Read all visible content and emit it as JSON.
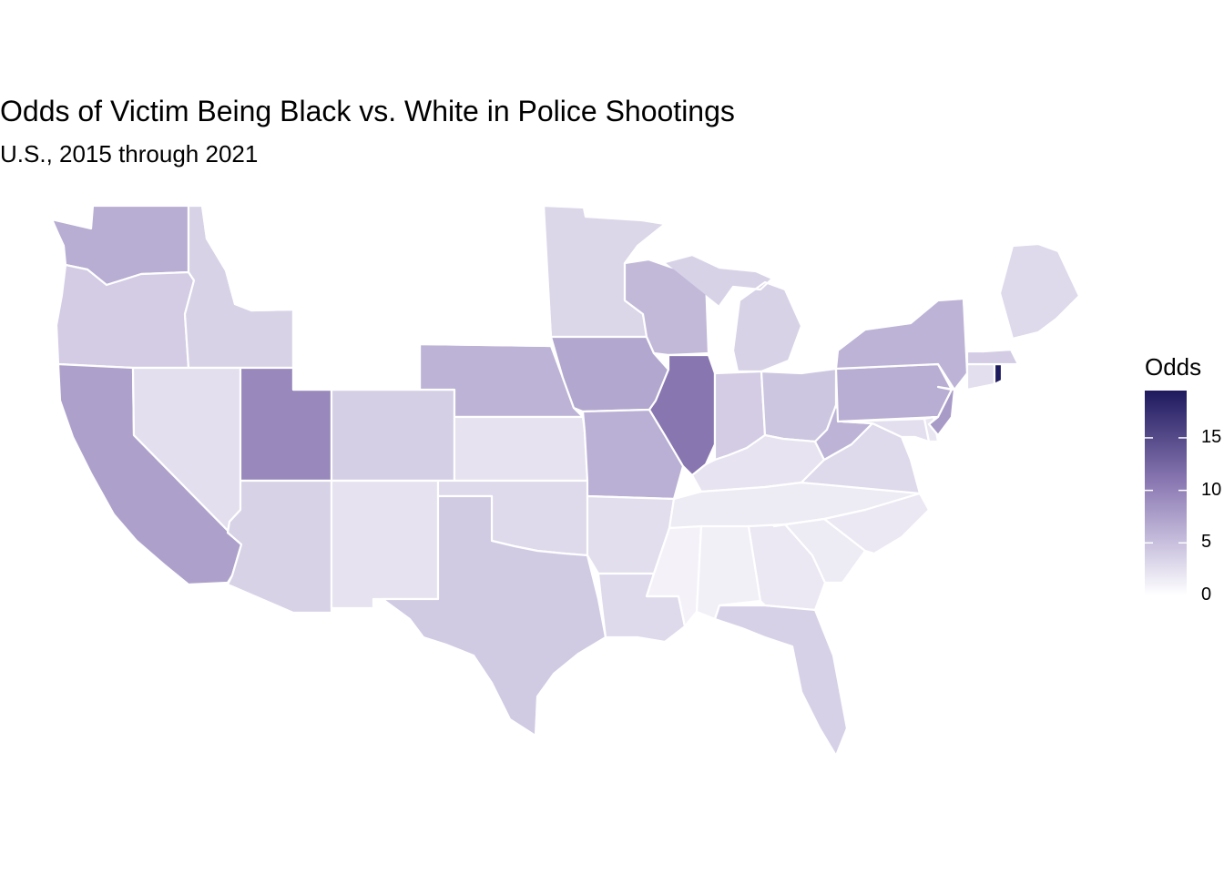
{
  "title": "Odds of Victim Being Black vs. White in Police Shootings",
  "subtitle": "U.S., 2015 through 2021",
  "legend": {
    "title": "Odds",
    "ticks": [
      "0",
      "5",
      "10",
      "15"
    ],
    "tick_values": [
      0,
      5,
      10,
      15
    ],
    "max": 19.5,
    "color_low": "#ffffff",
    "color_high": "#1e1a5e"
  },
  "map_data": {
    "type": "choropleth",
    "region": "contiguous United States",
    "states": {
      "WA": 6.5,
      "OR": 4.0,
      "CA": 7.5,
      "ID": 3.5,
      "NV": 2.5,
      "UT": 9.5,
      "AZ": 3.5,
      "MT": 0,
      "WY": 0,
      "CO": 3.8,
      "NM": 2.3,
      "ND": 0,
      "SD": 0,
      "NE": 6.0,
      "KS": 2.3,
      "OK": 3.0,
      "TX": 4.2,
      "MN": 3.2,
      "IA": 7.0,
      "MO": 6.3,
      "AR": 2.6,
      "LA": 3.0,
      "WI": 5.5,
      "IL": 11.0,
      "MI": 3.5,
      "IN": 4.0,
      "OH": 4.5,
      "KY": 2.2,
      "TN": 1.6,
      "MS": 1.0,
      "AL": 1.2,
      "GA": 1.8,
      "FL": 3.6,
      "SC": 1.6,
      "NC": 1.8,
      "VA": 3.0,
      "WV": 6.0,
      "PA": 6.5,
      "NY": 6.0,
      "NJ": 8.0,
      "DE": 2.0,
      "MD": 2.5,
      "CT": 2.5,
      "RI": 19.5,
      "MA": 4.0,
      "VT": 0,
      "NH": 0,
      "ME": 3.0
    }
  }
}
